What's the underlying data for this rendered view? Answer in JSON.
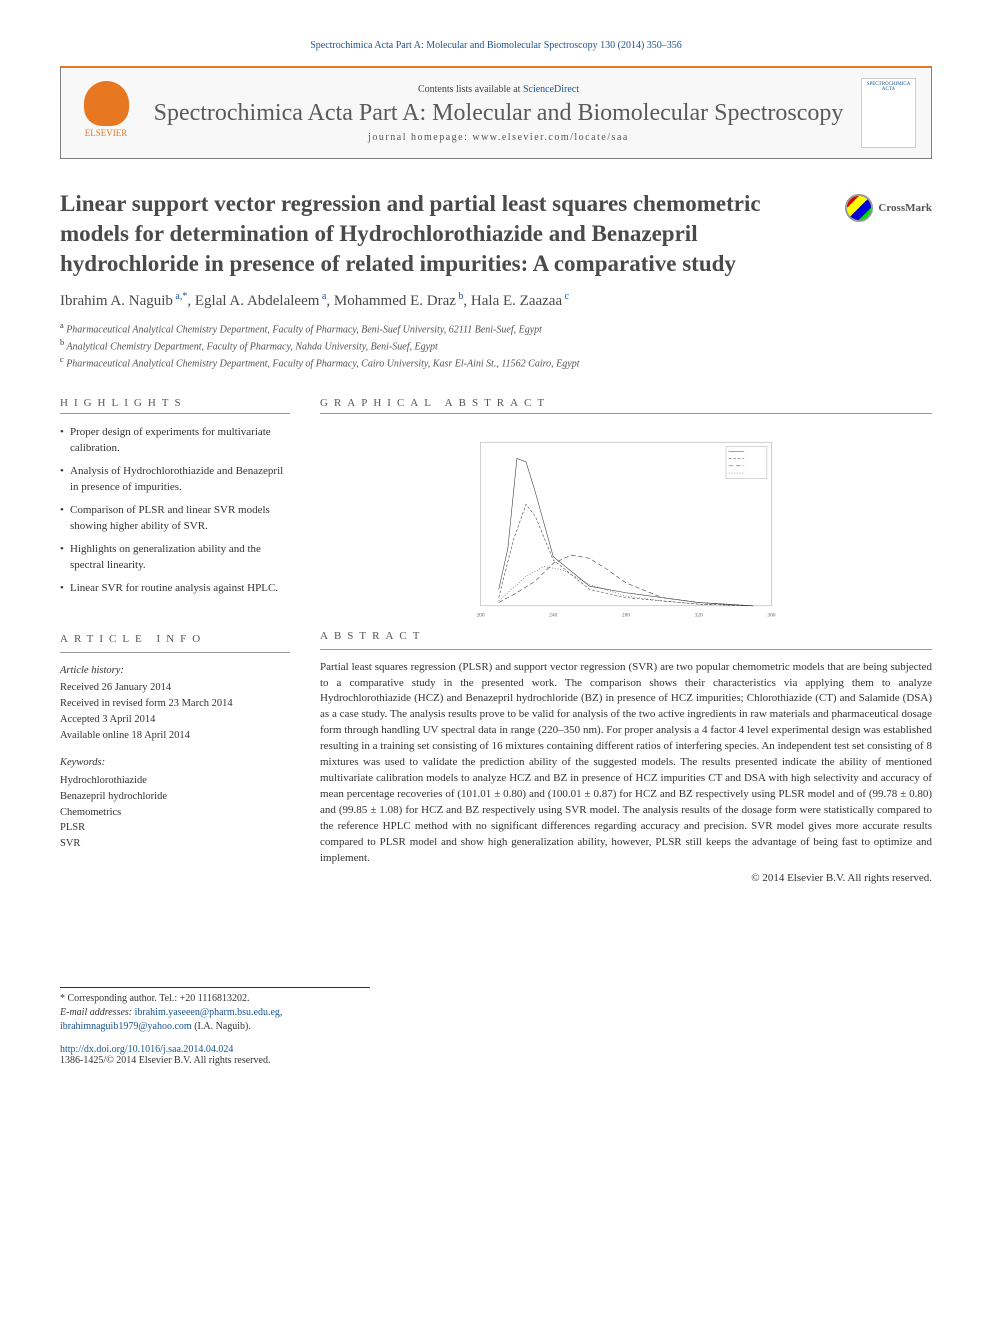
{
  "citation": "Spectrochimica Acta Part A: Molecular and Biomolecular Spectroscopy 130 (2014) 350–356",
  "header": {
    "publisher": "ELSEVIER",
    "contents_prefix": "Contents lists available at ",
    "contents_link": "ScienceDirect",
    "journal_name": "Spectrochimica Acta Part A: Molecular and Biomolecular Spectroscopy",
    "homepage_label": "journal homepage: www.elsevier.com/locate/saa",
    "thumb_text": "SPECTROCHIMICA ACTA"
  },
  "title": "Linear support vector regression and partial least squares chemometric models for determination of Hydrochlorothiazide and Benazepril hydrochloride in presence of related impurities: A comparative study",
  "crossmark": "CrossMark",
  "authors": [
    {
      "name": "Ibrahim A. Naguib",
      "marks": "a,*"
    },
    {
      "name": "Eglal A. Abdelaleem",
      "marks": "a"
    },
    {
      "name": "Mohammed E. Draz",
      "marks": "b"
    },
    {
      "name": "Hala E. Zaazaa",
      "marks": "c"
    }
  ],
  "affiliations": [
    {
      "mark": "a",
      "text": "Pharmaceutical Analytical Chemistry Department, Faculty of Pharmacy, Beni-Suef University, 62111 Beni-Suef, Egypt"
    },
    {
      "mark": "b",
      "text": "Analytical Chemistry Department, Faculty of Pharmacy, Nahda University, Beni-Suef, Egypt"
    },
    {
      "mark": "c",
      "text": "Pharmaceutical Analytical Chemistry Department, Faculty of Pharmacy, Cairo University, Kasr El-Aini St., 11562 Cairo, Egypt"
    }
  ],
  "sections": {
    "highlights": "HIGHLIGHTS",
    "graphical": "GRAPHICAL ABSTRACT",
    "article_info": "ARTICLE INFO",
    "abstract": "ABSTRACT"
  },
  "highlights": [
    "Proper design of experiments for multivariate calibration.",
    "Analysis of Hydrochlorothiazide and Benazepril in presence of impurities.",
    "Comparison of PLSR and linear SVR models showing higher ability of SVR.",
    "Highlights on generalization ability and the spectral linearity.",
    "Linear SVR for routine analysis against HPLC."
  ],
  "graphical_abstract": {
    "type": "line",
    "title": "",
    "xlim": [
      200,
      360
    ],
    "ylim": [
      0,
      1.0
    ],
    "xticks": [
      200,
      240,
      280,
      320,
      360
    ],
    "series_count": 4,
    "line_color": "#333333",
    "line_width": 0.6,
    "dash_patterns": [
      "solid",
      "3,2",
      "5,3",
      "1,2"
    ],
    "background_color": "#ffffff",
    "series": [
      {
        "x": [
          210,
          215,
          220,
          225,
          230,
          240,
          260,
          280,
          300,
          320,
          350
        ],
        "y": [
          0.1,
          0.35,
          0.9,
          0.88,
          0.7,
          0.3,
          0.12,
          0.08,
          0.05,
          0.02,
          0.0
        ]
      },
      {
        "x": [
          210,
          218,
          225,
          230,
          240,
          260,
          280,
          300,
          320,
          350
        ],
        "y": [
          0.05,
          0.4,
          0.62,
          0.55,
          0.28,
          0.1,
          0.05,
          0.03,
          0.01,
          0.0
        ]
      },
      {
        "x": [
          210,
          220,
          230,
          240,
          250,
          260,
          270,
          280,
          300,
          320,
          350
        ],
        "y": [
          0.02,
          0.08,
          0.15,
          0.26,
          0.31,
          0.29,
          0.22,
          0.14,
          0.05,
          0.02,
          0.0
        ]
      },
      {
        "x": [
          210,
          225,
          235,
          245,
          260,
          280,
          300,
          320,
          350
        ],
        "y": [
          0.03,
          0.18,
          0.24,
          0.22,
          0.13,
          0.06,
          0.03,
          0.01,
          0.0
        ]
      }
    ]
  },
  "article_info": {
    "history_label": "Article history:",
    "history": [
      "Received 26 January 2014",
      "Received in revised form 23 March 2014",
      "Accepted 3 April 2014",
      "Available online 18 April 2014"
    ],
    "keywords_label": "Keywords:",
    "keywords": [
      "Hydrochlorothiazide",
      "Benazepril hydrochloride",
      "Chemometrics",
      "PLSR",
      "SVR"
    ]
  },
  "abstract": "Partial least squares regression (PLSR) and support vector regression (SVR) are two popular chemometric models that are being subjected to a comparative study in the presented work. The comparison shows their characteristics via applying them to analyze Hydrochlorothiazide (HCZ) and Benazepril hydrochloride (BZ) in presence of HCZ impurities; Chlorothiazide (CT) and Salamide (DSA) as a case study. The analysis results prove to be valid for analysis of the two active ingredients in raw materials and pharmaceutical dosage form through handling UV spectral data in range (220–350 nm). For proper analysis a 4 factor 4 level experimental design was established resulting in a training set consisting of 16 mixtures containing different ratios of interfering species. An independent test set consisting of 8 mixtures was used to validate the prediction ability of the suggested models. The results presented indicate the ability of mentioned multivariate calibration models to analyze HCZ and BZ in presence of HCZ impurities CT and DSA with high selectivity and accuracy of mean percentage recoveries of (101.01 ± 0.80) and (100.01 ± 0.87) for HCZ and BZ respectively using PLSR model and of (99.78 ± 0.80) and (99.85 ± 1.08) for HCZ and BZ respectively using SVR model. The analysis results of the dosage form were statistically compared to the reference HPLC method with no significant differences regarding accuracy and precision. SVR model gives more accurate results compared to PLSR model and show high generalization ability, however, PLSR still keeps the advantage of being fast to optimize and implement.",
  "copyright": "© 2014 Elsevier B.V. All rights reserved.",
  "footnotes": {
    "corresponding": "* Corresponding author. Tel.: +20 1116813202.",
    "email_label": "E-mail addresses:",
    "emails": [
      "ibrahim.yaseeen@pharm.bsu.edu.eg",
      "ibrahimnaguib1979@yahoo.com"
    ],
    "email_suffix": "(I.A. Naguib)."
  },
  "doi": {
    "url": "http://dx.doi.org/10.1016/j.saa.2014.04.024",
    "issn": "1386-1425/© 2014 Elsevier B.V. All rights reserved."
  },
  "colors": {
    "link": "#1a5490",
    "accent": "#e87722",
    "text": "#333333",
    "muted": "#555555"
  }
}
